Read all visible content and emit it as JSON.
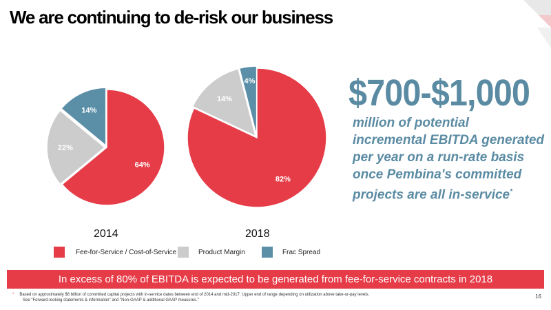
{
  "title": "We are continuing to de-risk our business",
  "colors": {
    "fee": "#e63c48",
    "product": "#cccccc",
    "frac": "#5b8fa8",
    "accent_text": "#5a8ba3",
    "banner": "#e63c48"
  },
  "chart_data": [
    {
      "type": "pie",
      "title": "2014",
      "categories": [
        "Fee-for-Service / Cost-of-Service",
        "Product Margin",
        "Frac Spread"
      ],
      "values": [
        64,
        22,
        14
      ],
      "labels": [
        "64%",
        "22%",
        "14%"
      ]
    },
    {
      "type": "pie",
      "title": "2018",
      "categories": [
        "Fee-for-Service / Cost-of-Service",
        "Product Margin",
        "Frac Spread"
      ],
      "values": [
        82,
        14,
        4
      ],
      "labels": [
        "82%",
        "14%",
        "4%"
      ]
    }
  ],
  "legend": [
    {
      "label": "Fee-for-Service / Cost-of-Service"
    },
    {
      "label": "Product Margin"
    },
    {
      "label": "Frac Spread"
    }
  ],
  "headline_value": "$700-$1,000",
  "headline_text": "million of potential incremental EBITDA generated per year on a run-rate basis once Pembina's committed projects are all in-service",
  "headline_marker": "*",
  "banner": "In excess of 80% of EBITDA is expected to be generated from fee-for-service contracts in 2018",
  "footnote_marker": "*",
  "footnote_line1": "Based on approximately $6 billion of committed capital projects with in-service dates between end of 2014 and mid-2017. Upper end of range depending on utilization above take-or-pay levels.",
  "footnote_line2": "See \"Forward-looking statements & information\" and \"Non-GAAP & additional GAAP measures.\"",
  "page_number": "16"
}
